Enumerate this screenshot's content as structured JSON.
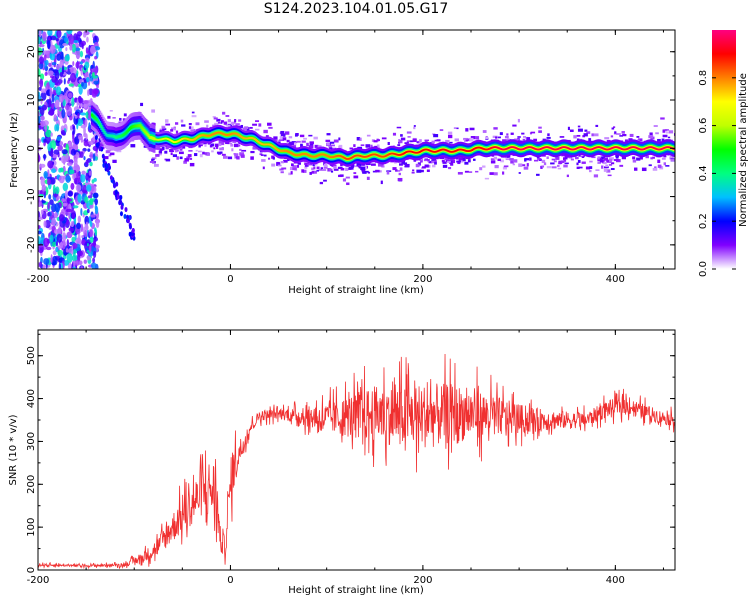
{
  "title": "S124.2023.104.01.05.G17",
  "colors": {
    "snr_line": "#f03030",
    "colormap": [
      "#ffffff",
      "#8000ff",
      "#0000ff",
      "#00c0ff",
      "#00ff80",
      "#00ff00",
      "#c0ff00",
      "#ffff00",
      "#ff8000",
      "#ff0000",
      "#ff0080"
    ]
  },
  "chart_data": [
    {
      "type": "heatmap",
      "xlabel": "Height of straight line (km)",
      "ylabel": "Frequency (Hz)",
      "xlim": [
        -200,
        462
      ],
      "ylim": [
        -25,
        24.5
      ],
      "xticks": [
        "-200",
        "0",
        "200",
        "400"
      ],
      "yticks": [
        "20",
        "10",
        "0",
        "-10",
        "-20"
      ],
      "ridge": {
        "x": [
          -145,
          -130,
          -120,
          -105,
          -95,
          -85,
          -75,
          -60,
          -40,
          -20,
          0,
          20,
          40,
          60,
          80,
          100,
          120,
          140,
          160,
          180,
          200,
          220,
          240,
          260,
          280,
          300,
          320,
          340,
          360,
          380,
          400,
          420,
          440,
          462
        ],
        "freq": [
          7,
          3,
          2,
          4,
          5,
          2,
          2,
          1.5,
          2,
          3,
          3,
          2,
          0.5,
          -1,
          -1.5,
          -1.5,
          -2,
          -1.5,
          -1.5,
          -1,
          -0.5,
          -0.5,
          -0.5,
          0,
          0,
          0,
          0,
          0,
          0,
          0,
          0,
          0,
          0,
          0
        ],
        "amplitude": [
          0.5,
          0.35,
          0.4,
          0.5,
          0.55,
          0.6,
          0.65,
          0.7,
          0.75,
          0.8,
          0.8,
          0.75,
          0.75,
          0.8,
          0.8,
          0.8,
          0.85,
          0.85,
          0.85,
          0.9,
          0.9,
          0.9,
          0.9,
          0.9,
          0.95,
          0.95,
          0.95,
          0.95,
          0.95,
          0.95,
          0.95,
          0.95,
          0.95,
          0.95
        ]
      },
      "colorbar": {
        "label": "Normalized spectral amplitude",
        "range": [
          0,
          1
        ],
        "ticks": [
          "0.0",
          "0.2",
          "0.4",
          "0.6",
          "0.8"
        ]
      }
    },
    {
      "type": "line",
      "xlabel": "Height of straight line (km)",
      "ylabel": "SNR (10 * v/v)",
      "xlim": [
        -200,
        462
      ],
      "ylim": [
        0,
        560
      ],
      "xticks": [
        "-200",
        "0",
        "200",
        "400"
      ],
      "yticks": [
        "0",
        "100",
        "200",
        "300",
        "400",
        "500"
      ],
      "series": [
        {
          "x": [
            -200,
            -150,
            -110,
            -90,
            -75,
            -60,
            -45,
            -30,
            -20,
            -15,
            -10,
            -5,
            0,
            5,
            10,
            15,
            20,
            30,
            50,
            70,
            90,
            110,
            130,
            150,
            170,
            190,
            210,
            230,
            250,
            270,
            290,
            310,
            330,
            350,
            370,
            390,
            410,
            430,
            450,
            462
          ],
          "center": [
            12,
            10,
            12,
            30,
            55,
            100,
            140,
            180,
            190,
            180,
            60,
            60,
            200,
            250,
            280,
            300,
            330,
            360,
            365,
            360,
            355,
            355,
            360,
            365,
            360,
            360,
            360,
            365,
            365,
            360,
            355,
            350,
            350,
            350,
            350,
            375,
            385,
            370,
            355,
            350
          ],
          "spread": [
            6,
            5,
            8,
            25,
            45,
            70,
            90,
            110,
            150,
            140,
            50,
            50,
            120,
            90,
            60,
            40,
            25,
            25,
            25,
            35,
            60,
            80,
            110,
            130,
            140,
            150,
            150,
            140,
            120,
            100,
            80,
            60,
            50,
            40,
            35,
            40,
            40,
            35,
            30,
            30
          ]
        }
      ]
    }
  ]
}
